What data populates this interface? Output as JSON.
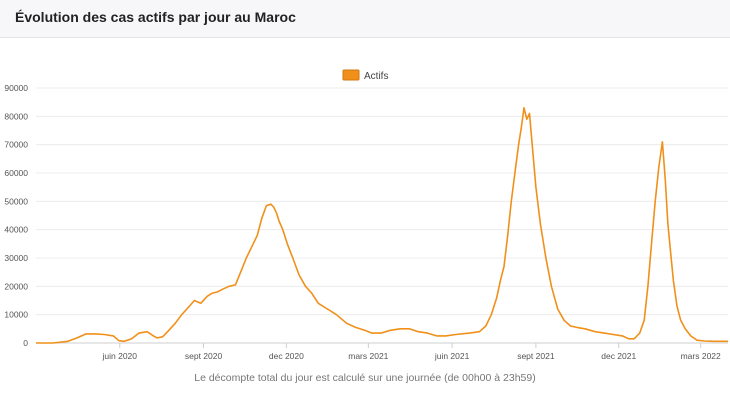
{
  "header": {
    "title": "Évolution des cas actifs par jour au Maroc"
  },
  "footer": {
    "note": "Le décompte total du jour est calculé sur une journée (de 00h00 à 23h59)"
  },
  "chart_data": {
    "type": "line",
    "title": "Évolution des cas actifs par jour au Maroc",
    "xlabel": "",
    "ylabel": "",
    "ylim": [
      0,
      90000
    ],
    "yticks": [
      0,
      10000,
      20000,
      30000,
      40000,
      50000,
      60000,
      70000,
      80000,
      90000
    ],
    "xlim": [
      "2020-03-01",
      "2022-03-31"
    ],
    "xticks": [
      {
        "date": "2020-06-01",
        "label": "juin 2020"
      },
      {
        "date": "2020-09-01",
        "label": "sept 2020"
      },
      {
        "date": "2020-12-01",
        "label": "dec 2020"
      },
      {
        "date": "2021-03-01",
        "label": "mars 2021"
      },
      {
        "date": "2021-06-01",
        "label": "juin 2021"
      },
      {
        "date": "2021-09-01",
        "label": "sept 2021"
      },
      {
        "date": "2021-12-01",
        "label": "dec 2021"
      },
      {
        "date": "2022-03-01",
        "label": "mars 2022"
      }
    ],
    "grid": true,
    "legend": "top",
    "color": "#f0901a",
    "series": [
      {
        "name": "Actifs",
        "x": [
          "2020-03-01",
          "2020-03-20",
          "2020-04-05",
          "2020-04-15",
          "2020-04-25",
          "2020-05-05",
          "2020-05-15",
          "2020-05-25",
          "2020-05-31",
          "2020-06-06",
          "2020-06-14",
          "2020-06-22",
          "2020-07-01",
          "2020-07-08",
          "2020-07-12",
          "2020-07-18",
          "2020-07-25",
          "2020-08-01",
          "2020-08-08",
          "2020-08-15",
          "2020-08-22",
          "2020-08-29",
          "2020-09-05",
          "2020-09-10",
          "2020-09-16",
          "2020-09-22",
          "2020-09-29",
          "2020-10-06",
          "2020-10-13",
          "2020-10-18",
          "2020-10-24",
          "2020-10-30",
          "2020-11-04",
          "2020-11-09",
          "2020-11-14",
          "2020-11-17",
          "2020-11-20",
          "2020-11-23",
          "2020-11-27",
          "2020-12-02",
          "2020-12-08",
          "2020-12-15",
          "2020-12-22",
          "2020-12-29",
          "2021-01-05",
          "2021-01-15",
          "2021-01-25",
          "2021-02-05",
          "2021-02-15",
          "2021-02-25",
          "2021-03-05",
          "2021-03-15",
          "2021-03-25",
          "2021-04-05",
          "2021-04-15",
          "2021-04-25",
          "2021-05-05",
          "2021-05-15",
          "2021-05-25",
          "2021-06-05",
          "2021-06-20",
          "2021-07-01",
          "2021-07-08",
          "2021-07-14",
          "2021-07-20",
          "2021-07-24",
          "2021-07-28",
          "2021-08-01",
          "2021-08-05",
          "2021-08-09",
          "2021-08-13",
          "2021-08-16",
          "2021-08-19",
          "2021-08-22",
          "2021-08-25",
          "2021-08-28",
          "2021-09-01",
          "2021-09-06",
          "2021-09-12",
          "2021-09-18",
          "2021-09-25",
          "2021-10-02",
          "2021-10-09",
          "2021-10-16",
          "2021-10-25",
          "2021-11-05",
          "2021-11-15",
          "2021-11-25",
          "2021-12-05",
          "2021-12-12",
          "2021-12-18",
          "2021-12-24",
          "2021-12-29",
          "2022-01-02",
          "2022-01-06",
          "2022-01-10",
          "2022-01-14",
          "2022-01-18",
          "2022-01-21",
          "2022-01-24",
          "2022-01-27",
          "2022-01-30",
          "2022-02-03",
          "2022-02-07",
          "2022-02-12",
          "2022-02-18",
          "2022-02-25",
          "2022-03-05",
          "2022-03-15",
          "2022-03-31"
        ],
        "values": [
          0,
          0,
          600,
          1800,
          3200,
          3200,
          3000,
          2500,
          800,
          600,
          1500,
          3500,
          4000,
          2500,
          1800,
          2200,
          4500,
          7000,
          10000,
          12500,
          15000,
          14000,
          16500,
          17500,
          18000,
          19000,
          20000,
          20500,
          26000,
          30000,
          34000,
          38000,
          44000,
          48500,
          49000,
          48000,
          46000,
          43000,
          40000,
          35000,
          30000,
          24000,
          20000,
          17500,
          14000,
          12000,
          10000,
          7000,
          5500,
          4500,
          3500,
          3500,
          4500,
          5000,
          5000,
          4000,
          3500,
          2500,
          2500,
          3000,
          3500,
          4000,
          6000,
          10000,
          16000,
          22000,
          27000,
          38000,
          50000,
          60000,
          70000,
          76000,
          83000,
          79000,
          81000,
          70000,
          55000,
          42000,
          30000,
          20000,
          12000,
          8000,
          6000,
          5500,
          5000,
          4000,
          3500,
          3000,
          2500,
          1500,
          1500,
          3500,
          8000,
          20000,
          35000,
          50000,
          62000,
          71000,
          58000,
          42000,
          32000,
          22000,
          13000,
          8000,
          5000,
          2500,
          1000,
          700,
          600,
          600
        ]
      }
    ]
  }
}
